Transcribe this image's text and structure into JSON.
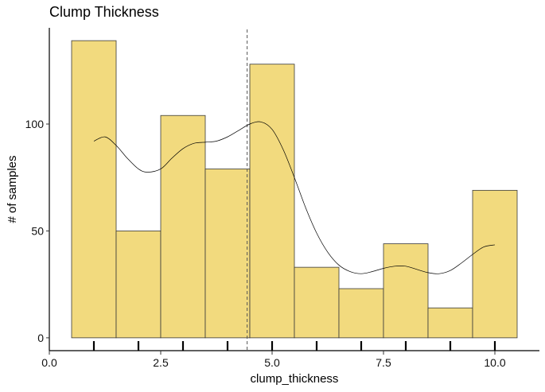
{
  "chart_data": {
    "type": "bar",
    "title": "Clump Thickness",
    "xlabel": "clump_thickness",
    "ylabel": "# of samples",
    "xlim": [
      0,
      11.0
    ],
    "ylim": [
      -6,
      145
    ],
    "x_ticks": [
      0,
      2.5,
      5.0,
      7.5,
      10.0
    ],
    "x_tick_labels": [
      "0.0",
      "2.5",
      "5.0",
      "7.5",
      "10.0"
    ],
    "y_ticks": [
      0,
      50,
      100
    ],
    "y_tick_labels": [
      "0",
      "50",
      "100"
    ],
    "minor_x_ticks": [
      1,
      2,
      3,
      4,
      5,
      6,
      7,
      8,
      9,
      10
    ],
    "bins": [
      {
        "x0": 0.5,
        "x1": 1.5,
        "value": 139
      },
      {
        "x0": 1.5,
        "x1": 2.5,
        "value": 50
      },
      {
        "x0": 2.5,
        "x1": 3.5,
        "value": 104
      },
      {
        "x0": 3.5,
        "x1": 4.5,
        "value": 79
      },
      {
        "x0": 4.5,
        "x1": 5.5,
        "value": 128
      },
      {
        "x0": 5.5,
        "x1": 6.5,
        "value": 33
      },
      {
        "x0": 6.5,
        "x1": 7.5,
        "value": 23
      },
      {
        "x0": 7.5,
        "x1": 8.5,
        "value": 44
      },
      {
        "x0": 8.5,
        "x1": 9.5,
        "value": 14
      },
      {
        "x0": 9.5,
        "x1": 10.5,
        "value": 69
      }
    ],
    "mean_line_x": 4.44,
    "density_curve": [
      [
        1.0,
        92
      ],
      [
        1.25,
        94
      ],
      [
        1.5,
        90
      ],
      [
        1.75,
        84
      ],
      [
        2.0,
        79
      ],
      [
        2.2,
        77.5
      ],
      [
        2.5,
        79
      ],
      [
        2.75,
        84
      ],
      [
        3.0,
        88.5
      ],
      [
        3.25,
        91
      ],
      [
        3.5,
        91.5
      ],
      [
        3.75,
        92
      ],
      [
        4.0,
        94
      ],
      [
        4.25,
        97
      ],
      [
        4.5,
        100
      ],
      [
        4.75,
        101
      ],
      [
        5.0,
        97.5
      ],
      [
        5.25,
        88
      ],
      [
        5.5,
        75
      ],
      [
        5.75,
        61
      ],
      [
        6.0,
        49
      ],
      [
        6.25,
        40
      ],
      [
        6.5,
        34
      ],
      [
        6.75,
        31
      ],
      [
        7.0,
        30
      ],
      [
        7.25,
        31
      ],
      [
        7.5,
        32.5
      ],
      [
        7.75,
        33.5
      ],
      [
        8.0,
        33.5
      ],
      [
        8.25,
        32
      ],
      [
        8.5,
        30.5
      ],
      [
        8.75,
        30
      ],
      [
        9.0,
        31.5
      ],
      [
        9.25,
        35
      ],
      [
        9.5,
        39
      ],
      [
        9.75,
        42.5
      ],
      [
        10.0,
        43.5
      ]
    ],
    "colors": {
      "bar_fill": "#f2da7e",
      "bar_stroke": "#3a3a3a",
      "density": "#000000",
      "mean_line": "#555555",
      "axis": "#000000"
    },
    "grid": false,
    "legend": "none"
  }
}
